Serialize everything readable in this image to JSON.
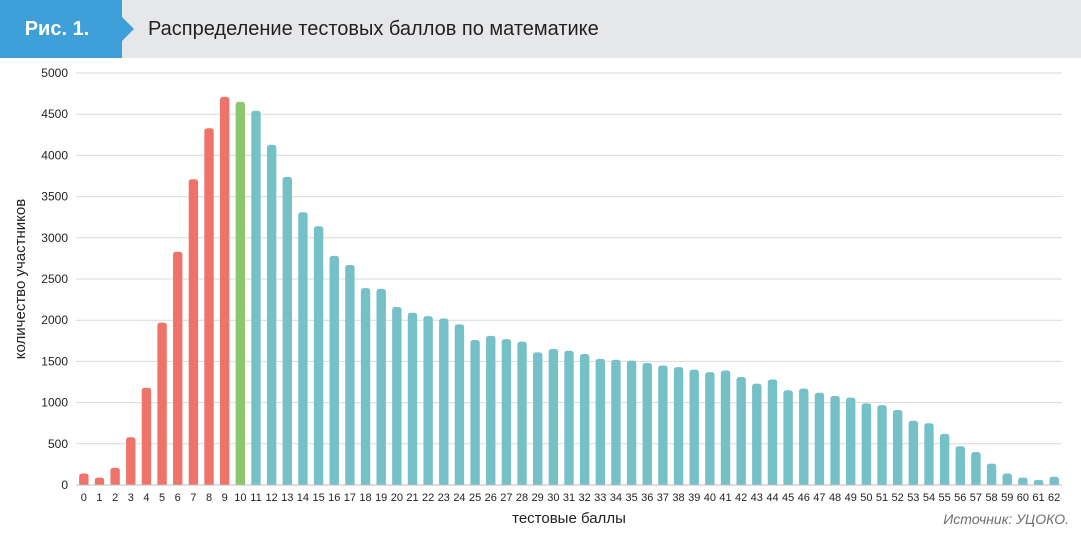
{
  "figure": {
    "badge": "Рис. 1.",
    "title": "Распределение тестовых баллов по математике",
    "source": "Источник: УЦОКО."
  },
  "colors": {
    "header_bg": "#e6e7e9",
    "badge_bg": "#3e9fd9",
    "below_threshold": "#f0736a",
    "threshold": "#8cc66d",
    "above_threshold": "#76c0c8",
    "grid": "#d9d9d9"
  },
  "chart_data": {
    "type": "bar",
    "title": "Распределение тестовых баллов по математике",
    "xlabel": "тестовые баллы",
    "ylabel": "количество участников",
    "ylim": [
      0,
      5000
    ],
    "yticks": [
      0,
      500,
      1000,
      1500,
      2000,
      2500,
      3000,
      3500,
      4000,
      4500,
      5000
    ],
    "grid": "horizontal",
    "categories": [
      "0",
      "1",
      "2",
      "3",
      "4",
      "5",
      "6",
      "7",
      "8",
      "9",
      "10",
      "11",
      "12",
      "13",
      "14",
      "15",
      "16",
      "17",
      "18",
      "19",
      "20",
      "21",
      "22",
      "23",
      "24",
      "25",
      "26",
      "27",
      "28",
      "29",
      "30",
      "31",
      "32",
      "33",
      "34",
      "35",
      "36",
      "37",
      "38",
      "39",
      "40",
      "41",
      "42",
      "43",
      "44",
      "45",
      "46",
      "47",
      "48",
      "49",
      "50",
      "51",
      "52",
      "53",
      "54",
      "55",
      "56",
      "57",
      "58",
      "59",
      "60",
      "61",
      "62"
    ],
    "values": [
      140,
      90,
      210,
      580,
      1180,
      1970,
      2830,
      3710,
      4330,
      4710,
      4650,
      4540,
      4130,
      3740,
      3310,
      3140,
      2780,
      2670,
      2390,
      2380,
      2160,
      2090,
      2050,
      2020,
      1950,
      1760,
      1810,
      1770,
      1740,
      1610,
      1650,
      1630,
      1590,
      1530,
      1520,
      1510,
      1480,
      1450,
      1430,
      1400,
      1370,
      1390,
      1310,
      1230,
      1280,
      1150,
      1170,
      1120,
      1080,
      1060,
      990,
      970,
      910,
      780,
      750,
      620,
      470,
      400,
      260,
      140,
      90,
      60,
      100
    ],
    "color_groups": {
      "below_threshold": [
        0,
        9
      ],
      "threshold": [
        10,
        10
      ],
      "above_threshold": [
        11,
        62
      ]
    }
  }
}
